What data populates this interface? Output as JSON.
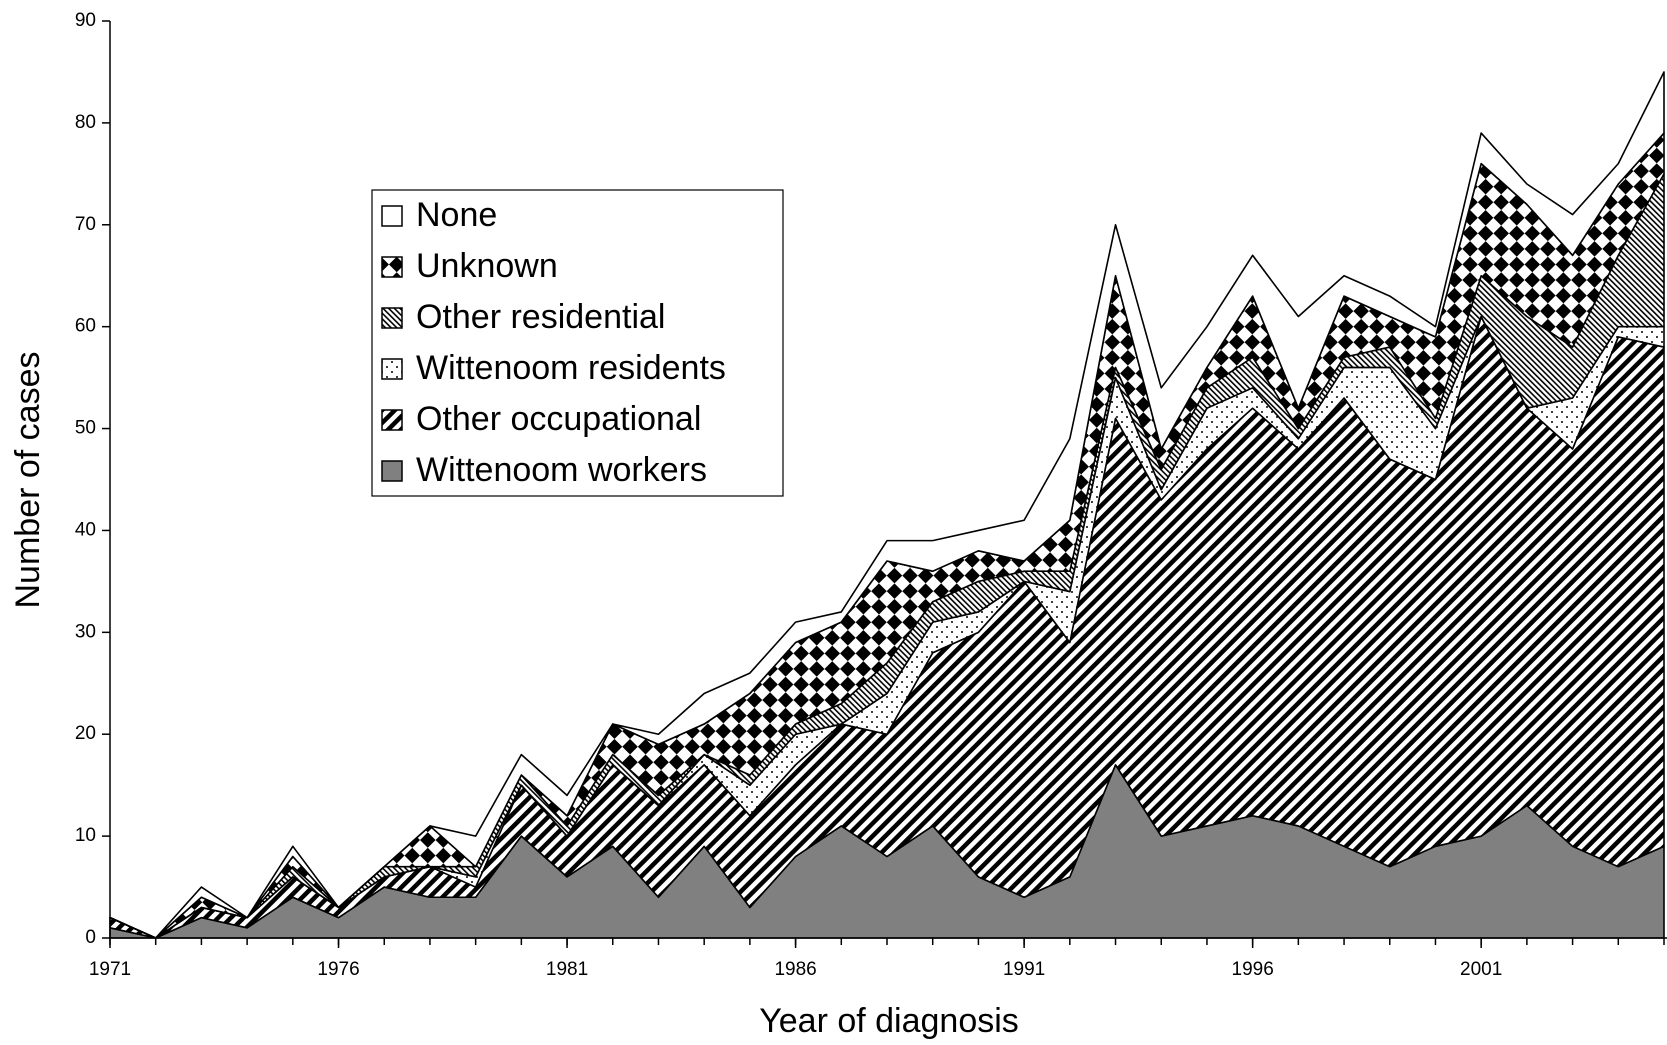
{
  "chart_data": {
    "type": "stacked-area",
    "x_label": "Year of diagnosis",
    "y_label": "Number of cases",
    "x": [
      1971,
      1972,
      1973,
      1974,
      1975,
      1976,
      1977,
      1978,
      1979,
      1980,
      1981,
      1982,
      1983,
      1984,
      1985,
      1986,
      1987,
      1988,
      1989,
      1990,
      1991,
      1992,
      1993,
      1994,
      1995,
      1996,
      1997,
      1998,
      1999,
      2000,
      2001,
      2002,
      2003,
      2004,
      2005
    ],
    "xlim": [
      1971,
      2005
    ],
    "xticks": [
      1971,
      1976,
      1981,
      1986,
      1991,
      1996,
      2001
    ],
    "ylim": [
      0,
      90
    ],
    "yticks": [
      0,
      10,
      20,
      30,
      40,
      50,
      60,
      70,
      80,
      90
    ],
    "legend_position": "upper left",
    "series": [
      {
        "name": "Wittenoom workers",
        "color": "#808080",
        "pattern": "solid",
        "values": [
          1,
          0,
          2,
          1,
          4,
          2,
          5,
          4,
          4,
          10,
          6,
          9,
          4,
          9,
          3,
          8,
          11,
          8,
          11,
          6,
          4,
          6,
          17,
          10,
          11,
          12,
          11,
          9,
          7,
          9,
          10,
          13,
          9,
          7,
          9
        ]
      },
      {
        "name": "Other occupational",
        "color": "#000000",
        "pattern": "diagonal",
        "values": [
          1,
          0,
          1,
          1,
          2,
          1,
          1,
          3,
          1,
          5,
          4,
          8,
          9,
          8,
          9,
          9,
          10,
          12,
          17,
          24,
          31,
          23,
          34,
          33,
          37,
          40,
          37,
          44,
          40,
          36,
          51,
          39,
          39,
          52,
          49
        ]
      },
      {
        "name": "Wittenoom residents",
        "color": "#000000",
        "pattern": "dots",
        "values": [
          0,
          0,
          0,
          0,
          0,
          0,
          0,
          0,
          1,
          0,
          0,
          0,
          0,
          1,
          3,
          3,
          0,
          4,
          3,
          2,
          0,
          5,
          4,
          1,
          4,
          2,
          1,
          3,
          9,
          5,
          0,
          0,
          5,
          1,
          2
        ]
      },
      {
        "name": "Other residential",
        "color": "#000000",
        "pattern": "hatch",
        "values": [
          0,
          0,
          0,
          0,
          1,
          0,
          1,
          0,
          1,
          1,
          1,
          1,
          1,
          0,
          1,
          1,
          2,
          3,
          2,
          3,
          1,
          2,
          1,
          2,
          2,
          3,
          1,
          1,
          2,
          1,
          4,
          9,
          5,
          7,
          15
        ]
      },
      {
        "name": "Unknown",
        "color": "#000000",
        "pattern": "checker",
        "values": [
          0,
          0,
          1,
          0,
          1,
          0,
          0,
          4,
          0,
          0,
          1,
          3,
          5,
          3,
          8,
          8,
          8,
          10,
          3,
          3,
          1,
          5,
          9,
          2,
          2,
          6,
          2,
          6,
          3,
          8,
          11,
          11,
          9,
          7,
          4
        ]
      },
      {
        "name": "None",
        "color": "#ffffff",
        "pattern": "none",
        "values": [
          0,
          0,
          1,
          0,
          1,
          0,
          0,
          0,
          3,
          2,
          2,
          0,
          1,
          3,
          2,
          2,
          1,
          2,
          3,
          2,
          4,
          8,
          5,
          6,
          4,
          4,
          9,
          2,
          2,
          1,
          3,
          2,
          4,
          2,
          6
        ]
      }
    ]
  }
}
